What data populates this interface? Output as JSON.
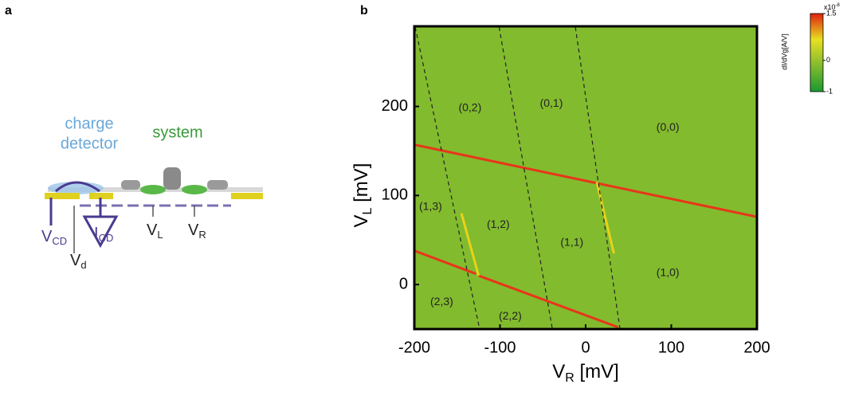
{
  "panel_a": {
    "label": "a",
    "charge_detector": [
      "charge",
      "detector"
    ],
    "system": "system",
    "terminals": [
      {
        "symbol": "V",
        "subscript": "CD"
      },
      {
        "symbol": "I",
        "subscript": "CD"
      },
      {
        "symbol": "V",
        "subscript": "d"
      },
      {
        "symbol": "V",
        "subscript": "L"
      },
      {
        "symbol": "V",
        "subscript": "R"
      }
    ]
  },
  "chart_data": {
    "type": "heatmap",
    "panel_label": "b",
    "xlabel": {
      "symbol": "V",
      "subscript": "R",
      "unit": " [mV]"
    },
    "ylabel": {
      "symbol": "V",
      "subscript": "L",
      "unit": " [mV]"
    },
    "xlim": [
      -200,
      200
    ],
    "xticks": [
      -200,
      -100,
      0,
      100,
      200
    ],
    "ylim": [
      -50,
      290
    ],
    "yticks": [
      0,
      100,
      200
    ],
    "background": "#82bb2e",
    "lines": [
      {
        "style": "solid",
        "color": "#e8351a",
        "x": [
          -200,
          200
        ],
        "y": [
          157,
          76
        ]
      },
      {
        "style": "solid",
        "color": "#e8351a",
        "x": [
          -200,
          -128
        ],
        "y": [
          38,
          12
        ]
      },
      {
        "style": "solid",
        "color": "#e8351a",
        "x": [
          -125,
          38
        ],
        "y": [
          10,
          -48
        ]
      },
      {
        "style": "solid",
        "color": "#e8d21a",
        "x": [
          -145,
          -125
        ],
        "y": [
          80,
          10
        ]
      },
      {
        "style": "solid",
        "color": "#e8d21a",
        "x": [
          13,
          33
        ],
        "y": [
          115,
          35
        ]
      },
      {
        "style": "dashed",
        "color": "#222222",
        "x": [
          -199,
          -124
        ],
        "y": [
          289,
          -49
        ]
      },
      {
        "style": "dashed",
        "color": "#222222",
        "x": [
          -101,
          -39
        ],
        "y": [
          289,
          -49
        ]
      },
      {
        "style": "dashed",
        "color": "#222222",
        "x": [
          -12,
          40
        ],
        "y": [
          289,
          -49
        ]
      }
    ],
    "annotations": [
      {
        "text": "(0,2)",
        "x": -135,
        "y": 198
      },
      {
        "text": "(0,1)",
        "x": -40,
        "y": 203
      },
      {
        "text": "(0,0)",
        "x": 96,
        "y": 176
      },
      {
        "text": "(1,3)",
        "x": -181,
        "y": 87
      },
      {
        "text": "(1,2)",
        "x": -102,
        "y": 67
      },
      {
        "text": "(1,1)",
        "x": -16,
        "y": 47
      },
      {
        "text": "(1,0)",
        "x": 96,
        "y": 13
      },
      {
        "text": "(2,3)",
        "x": -168,
        "y": -20
      },
      {
        "text": "(2,2)",
        "x": -88,
        "y": -36
      }
    ],
    "colorbar": {
      "label": "dI/dVg[A/V]",
      "multiplier": "x10",
      "exponent": "-8",
      "clim": [
        -1,
        1.5
      ],
      "ticks": [
        -1,
        0,
        1.5
      ],
      "colors": [
        "#1a9a30",
        "#82bb2e",
        "#e8e020",
        "#e02010"
      ]
    }
  }
}
